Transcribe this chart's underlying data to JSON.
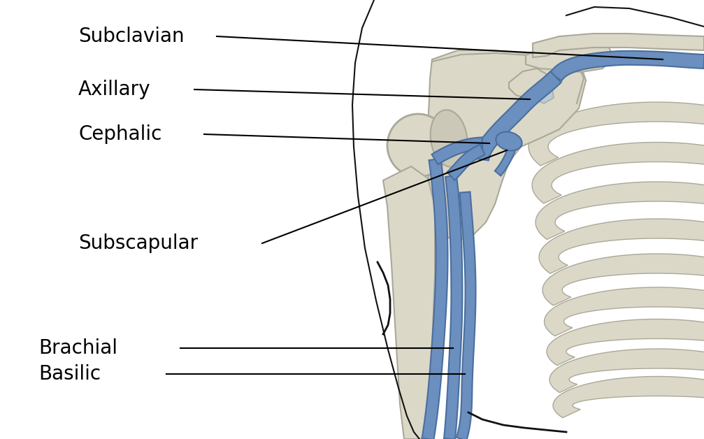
{
  "background_color": "#ffffff",
  "bone_fill": "#dcd8c8",
  "bone_edge": "#aaa898",
  "vein_fill": "#6b8fbe",
  "vein_edge": "#4a6f9e",
  "annotation_color": "#000000",
  "labels": [
    "Subclavian",
    "Axillary",
    "Cephalic",
    "Subscapular",
    "Brachial",
    "Basilic"
  ],
  "label_fontsize": 20,
  "figsize": [
    10.07,
    6.28
  ],
  "dpi": 100
}
